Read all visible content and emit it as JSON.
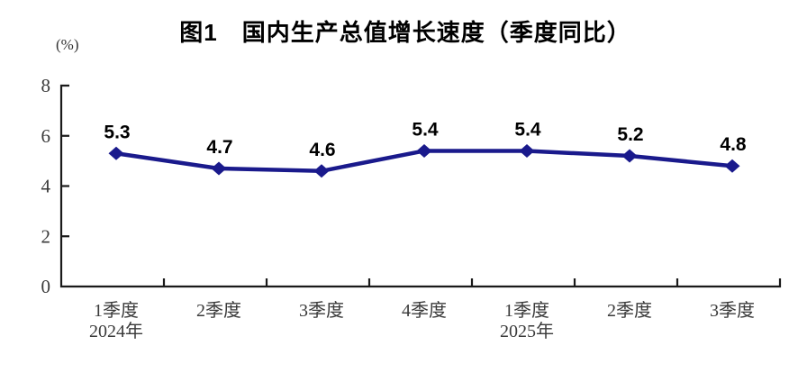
{
  "chart_data": {
    "type": "line",
    "title": "图1　国内生产总值增长速度（季度同比）",
    "ylabel": "(%)",
    "xlabel": "",
    "ylim": [
      0,
      8
    ],
    "yticks": [
      0,
      2,
      4,
      6,
      8
    ],
    "categories": [
      {
        "label": "1季度",
        "year": "2024年"
      },
      {
        "label": "2季度",
        "year": ""
      },
      {
        "label": "3季度",
        "year": ""
      },
      {
        "label": "4季度",
        "year": ""
      },
      {
        "label": "1季度",
        "year": "2025年"
      },
      {
        "label": "2季度",
        "year": ""
      },
      {
        "label": "3季度",
        "year": ""
      }
    ],
    "values": [
      5.3,
      4.7,
      4.6,
      5.4,
      5.4,
      5.2,
      4.8
    ],
    "point_labels": [
      "5.3",
      "4.7",
      "4.6",
      "5.4",
      "5.4",
      "5.2",
      "4.8"
    ],
    "line_color": "#1A1A8C",
    "axis_color": "#1a1a1a",
    "grid": false,
    "legend_position": "none"
  }
}
